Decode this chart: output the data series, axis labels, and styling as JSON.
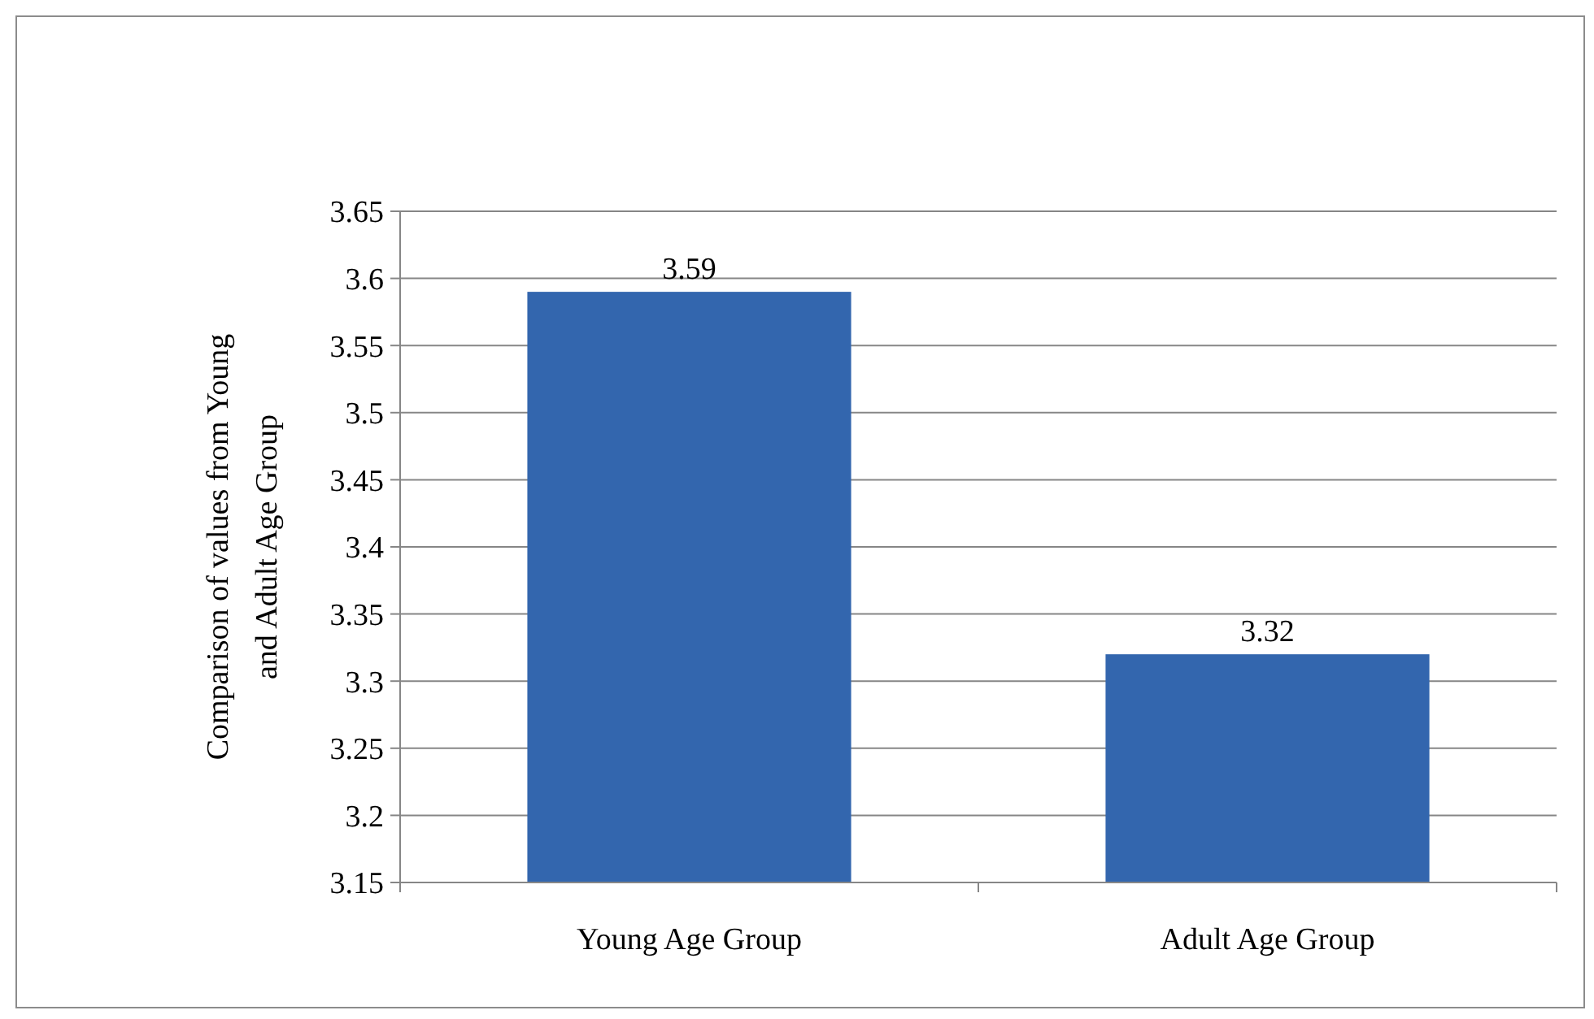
{
  "chart_data": {
    "type": "bar",
    "ylabel": "Comparison of values from Young and Adult Age Group",
    "categories": [
      "Young Age Group",
      "Adult Age Group"
    ],
    "values": [
      3.59,
      3.32
    ],
    "color": "#3366ae",
    "ylim": [
      3.15,
      3.65
    ],
    "yticks": [
      3.15,
      3.2,
      3.25,
      3.3,
      3.35,
      3.4,
      3.45,
      3.5,
      3.55,
      3.6,
      3.65
    ],
    "grid": "y",
    "data_labels": true
  }
}
